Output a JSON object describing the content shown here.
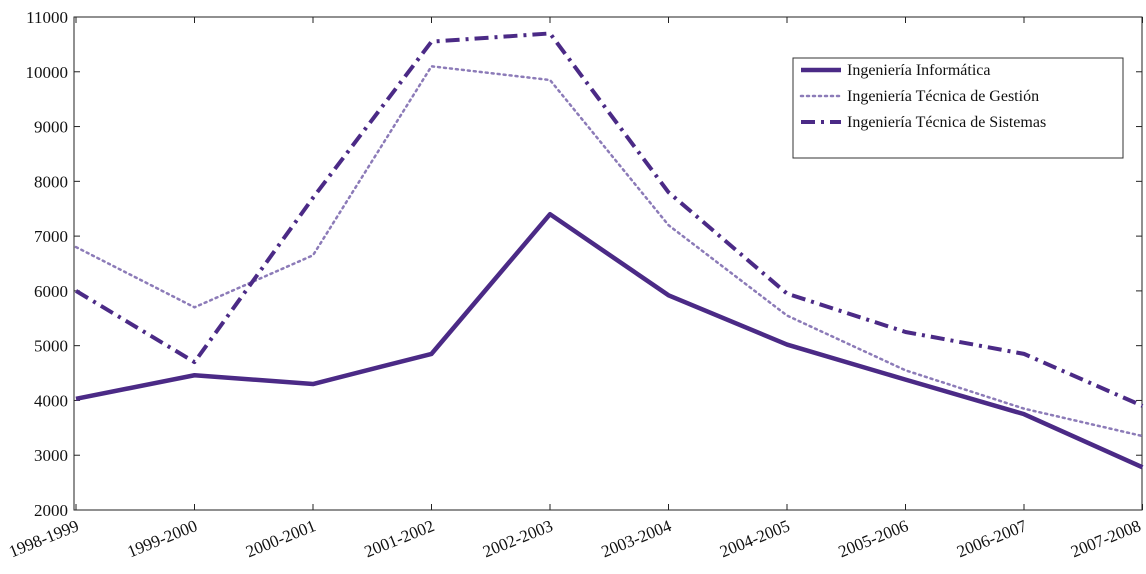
{
  "chart_data": {
    "type": "line",
    "title": "",
    "xlabel": "",
    "ylabel": "",
    "categories": [
      "1998-1999",
      "1999-2000",
      "2000-2001",
      "2001-2002",
      "2002-2003",
      "2003-2004",
      "2004-2005",
      "2005-2006",
      "2006-2007",
      "2007-2008"
    ],
    "ylim": [
      2000,
      11000
    ],
    "yticks": [
      2000,
      3000,
      4000,
      5000,
      6000,
      7000,
      8000,
      9000,
      10000,
      11000
    ],
    "grid": false,
    "legend_position": "top-right",
    "series": [
      {
        "name": "Ingeniería Informática",
        "style": "solid",
        "color": "#4b2a86",
        "values": [
          4030,
          4460,
          4300,
          4850,
          7400,
          5920,
          5020,
          4380,
          3750,
          2780
        ]
      },
      {
        "name": "Ingeniería Técnica de Gestión",
        "style": "dotted",
        "color": "#8c7bb8",
        "values": [
          6800,
          5700,
          6650,
          10100,
          9850,
          7200,
          5550,
          4550,
          3850,
          3350
        ]
      },
      {
        "name": "Ingeniería Técnica de Sistemas",
        "style": "dashdot",
        "color": "#4b2a86",
        "values": [
          6000,
          4700,
          7700,
          10550,
          10700,
          7800,
          5950,
          5250,
          4850,
          3900
        ]
      }
    ]
  }
}
